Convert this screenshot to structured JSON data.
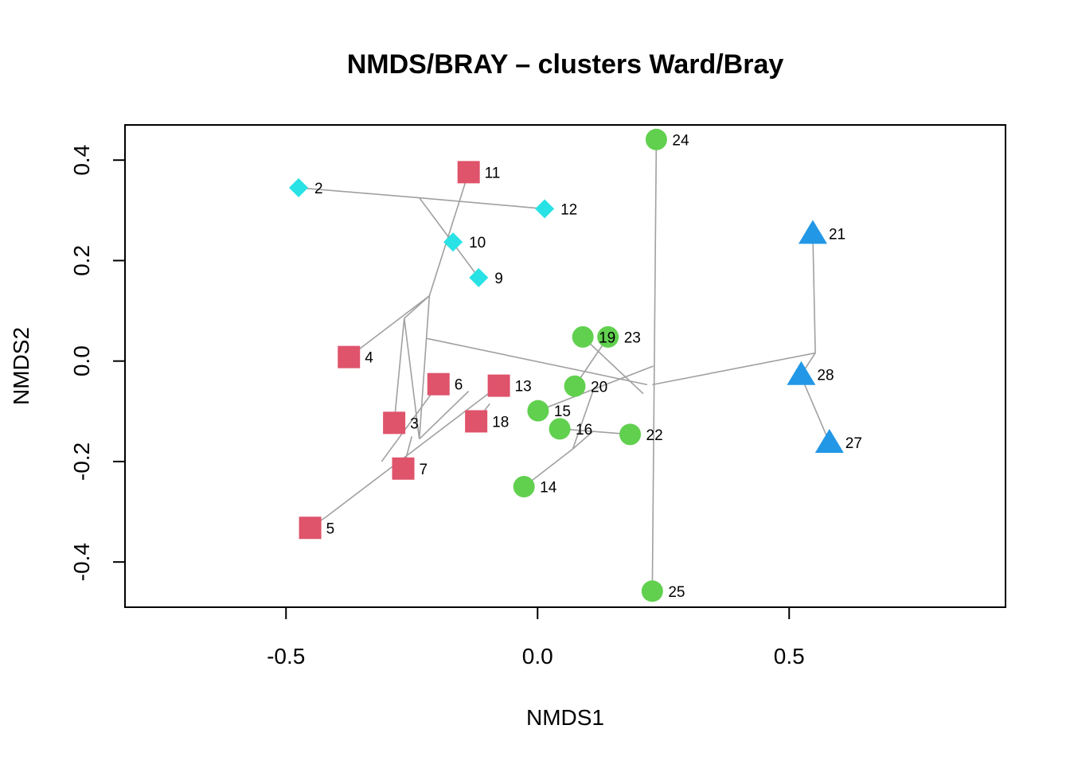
{
  "chart_data": {
    "type": "scatter",
    "title": "NMDS/BRAY – clusters Ward/Bray",
    "xlabel": "NMDS1",
    "ylabel": "NMDS2",
    "xlim": [
      -0.82,
      0.93
    ],
    "ylim": [
      -0.49,
      0.47
    ],
    "x_ticks": [
      -0.5,
      0.0,
      0.5
    ],
    "x_tick_labels": [
      "-0.5",
      "0.0",
      "0.5"
    ],
    "y_ticks": [
      -0.4,
      -0.2,
      0.0,
      0.2,
      0.4
    ],
    "y_tick_labels": [
      "-0.4",
      "-0.2",
      "0.0",
      "0.2",
      "0.4"
    ],
    "grid": false,
    "series": [
      {
        "color": "#DF536B",
        "marker": "square",
        "points": [
          {
            "label": "3",
            "x": -0.285,
            "y": -0.123
          },
          {
            "label": "4",
            "x": -0.375,
            "y": 0.008
          },
          {
            "label": "5",
            "x": -0.452,
            "y": -0.332
          },
          {
            "label": "6",
            "x": -0.197,
            "y": -0.046
          },
          {
            "label": "7",
            "x": -0.267,
            "y": -0.214
          },
          {
            "label": "11",
            "x": -0.137,
            "y": 0.376
          },
          {
            "label": "13",
            "x": -0.077,
            "y": -0.049
          },
          {
            "label": "18",
            "x": -0.122,
            "y": -0.12
          }
        ]
      },
      {
        "color": "#61D04F",
        "marker": "circle",
        "points": [
          {
            "label": "14",
            "x": -0.027,
            "y": -0.25
          },
          {
            "label": "15",
            "x": 0.001,
            "y": -0.099
          },
          {
            "label": "16",
            "x": 0.044,
            "y": -0.135
          },
          {
            "label": "19",
            "x": 0.09,
            "y": 0.048
          },
          {
            "label": "20",
            "x": 0.074,
            "y": -0.05
          },
          {
            "label": "22",
            "x": 0.184,
            "y": -0.146
          },
          {
            "label": "23",
            "x": 0.14,
            "y": 0.048
          },
          {
            "label": "24",
            "x": 0.236,
            "y": 0.441
          },
          {
            "label": "25",
            "x": 0.228,
            "y": -0.458
          }
        ]
      },
      {
        "color": "#2297E6",
        "marker": "triangle",
        "points": [
          {
            "label": "21",
            "x": 0.547,
            "y": 0.254
          },
          {
            "label": "27",
            "x": 0.58,
            "y": -0.162
          },
          {
            "label": "28",
            "x": 0.524,
            "y": -0.027
          }
        ]
      },
      {
        "color": "#28E2E5",
        "marker": "diamond",
        "points": [
          {
            "label": "2",
            "x": -0.475,
            "y": 0.345
          },
          {
            "label": "9",
            "x": -0.117,
            "y": 0.166
          },
          {
            "label": "10",
            "x": -0.168,
            "y": 0.237
          },
          {
            "label": "12",
            "x": 0.014,
            "y": 0.303
          }
        ]
      }
    ],
    "dendrogram_color": "#A0A0A0",
    "dendrogram_segments": [
      [
        -0.475,
        0.345,
        -0.235,
        0.325
      ],
      [
        0.014,
        0.303,
        -0.235,
        0.325
      ],
      [
        -0.235,
        0.325,
        -0.117,
        0.166
      ],
      [
        -0.168,
        0.237,
        -0.178,
        0.251
      ],
      [
        -0.137,
        0.376,
        -0.215,
        0.13
      ],
      [
        -0.375,
        0.008,
        -0.215,
        0.13
      ],
      [
        -0.215,
        0.13,
        -0.265,
        0.085
      ],
      [
        -0.265,
        0.085,
        -0.285,
        -0.123
      ],
      [
        -0.265,
        0.085,
        -0.235,
        -0.155
      ],
      [
        -0.215,
        0.13,
        -0.235,
        -0.155
      ],
      [
        -0.235,
        -0.155,
        -0.137,
        -0.06
      ],
      [
        -0.197,
        -0.046,
        -0.31,
        -0.2
      ],
      [
        -0.267,
        -0.214,
        -0.25,
        -0.15
      ],
      [
        -0.077,
        -0.049,
        -0.42,
        -0.31
      ],
      [
        -0.452,
        -0.332,
        -0.42,
        -0.31
      ],
      [
        -0.122,
        -0.12,
        -0.095,
        -0.085
      ],
      [
        -0.22,
        0.045,
        0.218,
        -0.047
      ],
      [
        0.09,
        0.048,
        0.21,
        -0.065
      ],
      [
        0.14,
        0.048,
        0.074,
        -0.05
      ],
      [
        0.001,
        -0.099,
        0.23,
        -0.01
      ],
      [
        0.074,
        -0.05,
        0.075,
        -0.06
      ],
      [
        0.044,
        -0.135,
        0.11,
        -0.14
      ],
      [
        0.184,
        -0.146,
        0.11,
        -0.14
      ],
      [
        0.11,
        -0.14,
        0.07,
        -0.175
      ],
      [
        -0.027,
        -0.25,
        0.07,
        -0.175
      ],
      [
        0.07,
        -0.175,
        0.11,
        -0.06
      ],
      [
        0.236,
        0.441,
        0.228,
        -0.458
      ],
      [
        0.228,
        -0.047,
        0.552,
        0.016
      ],
      [
        0.547,
        0.254,
        0.552,
        0.016
      ],
      [
        0.552,
        0.016,
        0.524,
        -0.027
      ],
      [
        0.53,
        -0.045,
        0.58,
        -0.162
      ]
    ]
  }
}
